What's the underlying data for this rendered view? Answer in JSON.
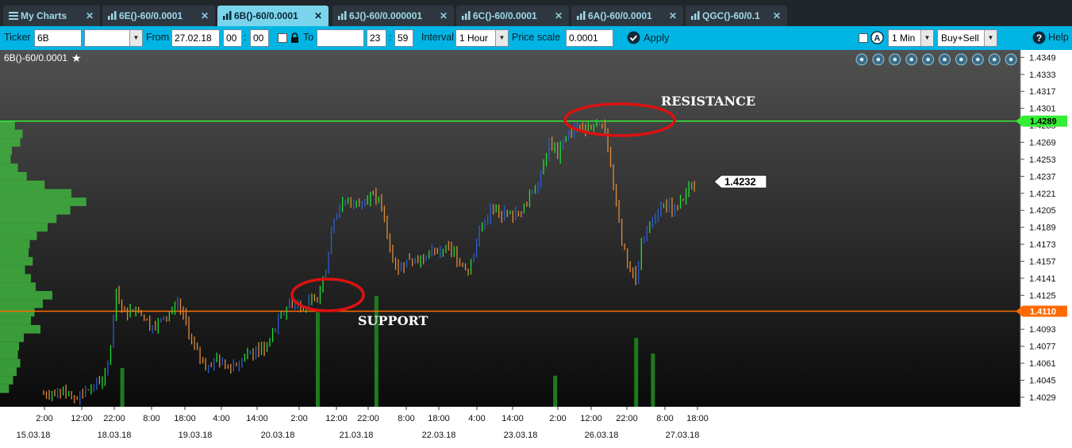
{
  "tabs": [
    {
      "label": "My Charts",
      "icon": "menu-icon",
      "active": false
    },
    {
      "label": "6E()-60/0.0001",
      "icon": "bar-chart-icon",
      "active": false
    },
    {
      "label": "6B()-60/0.0001",
      "icon": "bar-chart-icon",
      "active": true
    },
    {
      "label": "6J()-60/0.000001",
      "icon": "bar-chart-icon",
      "active": false
    },
    {
      "label": "6C()-60/0.0001",
      "icon": "bar-chart-icon",
      "active": false
    },
    {
      "label": "6A()-60/0.0001",
      "icon": "bar-chart-icon",
      "active": false
    },
    {
      "label": "QGC()-60/0.1",
      "icon": "bar-chart-icon",
      "active": false
    }
  ],
  "toolbar": {
    "ticker_label": "Ticker",
    "ticker_value": "6B",
    "from_label": "From",
    "from_date": "27.02.18",
    "from_hour": "00",
    "from_min": "00",
    "to_label": "To",
    "to_date": "",
    "to_hour": "23",
    "to_min": "59",
    "interval_label": "Interval",
    "interval_value": "1 Hour",
    "price_scale_label": "Price scale",
    "price_scale_value": "0.0001",
    "apply_label": "Apply",
    "sub_interval_value": "1 Min",
    "side_value": "Buy+Sell",
    "help_label": "Help",
    "time_sep": ":"
  },
  "chart_header": {
    "symbol": "6B()-60/0.0001"
  },
  "colors": {
    "background_top": "#505050",
    "background_bottom": "#0a0a0a",
    "up": "#22dd33",
    "down": "#e08a3a",
    "resistance": "#33ee33",
    "support": "#ff6a00",
    "circle": "#dd1111",
    "volume": "#1f7a1f"
  },
  "chart_data": {
    "type": "bar",
    "y_ticks": [
      "1.4349",
      "1.4333",
      "1.4317",
      "1.4301",
      "1.4285",
      "1.4269",
      "1.4253",
      "1.4237",
      "1.4221",
      "1.4205",
      "1.4189",
      "1.4173",
      "1.4157",
      "1.4141",
      "1.4125",
      "1.4109",
      "1.4093",
      "1.4077",
      "1.4061",
      "1.4045",
      "1.4029"
    ],
    "ylim": [
      1.402,
      1.4356
    ],
    "time_labels": [
      "2:00",
      "12:00",
      "22:00",
      "8:00",
      "18:00",
      "4:00",
      "14:00",
      "2:00",
      "12:00",
      "22:00",
      "8:00",
      "18:00",
      "4:00",
      "14:00",
      "2:00",
      "12:00",
      "22:00",
      "8:00",
      "18:00"
    ],
    "date_labels": [
      "15.03.18",
      "18.03.18",
      "19.03.18",
      "20.03.18",
      "21.03.18",
      "22.03.18",
      "23.03.18",
      "26.03.18",
      "27.03.18"
    ],
    "resistance": {
      "value": 1.4289,
      "label": "1.4289",
      "annotation": "RESISTANCE"
    },
    "support": {
      "value": 1.411,
      "label": "1.4110",
      "annotation": "SUPPORT"
    },
    "last_price": {
      "value": 1.4232,
      "label": "1.4232"
    },
    "path": [
      {
        "d": 0,
        "p": 1.4032
      },
      {
        "d": 6,
        "p": 1.4036
      },
      {
        "d": 12,
        "p": 1.4028
      },
      {
        "d": 18,
        "p": 1.404
      },
      {
        "d": 22,
        "p": 1.4048
      },
      {
        "d": 24,
        "p": 1.4078
      },
      {
        "d": 26,
        "p": 1.4128
      },
      {
        "d": 29,
        "p": 1.4106
      },
      {
        "d": 33,
        "p": 1.4115
      },
      {
        "d": 38,
        "p": 1.4096
      },
      {
        "d": 43,
        "p": 1.4102
      },
      {
        "d": 48,
        "p": 1.4118
      },
      {
        "d": 51,
        "p": 1.4098
      },
      {
        "d": 54,
        "p": 1.4074
      },
      {
        "d": 58,
        "p": 1.406
      },
      {
        "d": 62,
        "p": 1.4064
      },
      {
        "d": 66,
        "p": 1.4056
      },
      {
        "d": 70,
        "p": 1.4062
      },
      {
        "d": 75,
        "p": 1.407
      },
      {
        "d": 80,
        "p": 1.4078
      },
      {
        "d": 84,
        "p": 1.41
      },
      {
        "d": 88,
        "p": 1.4118
      },
      {
        "d": 93,
        "p": 1.4115
      },
      {
        "d": 98,
        "p": 1.412
      },
      {
        "d": 101,
        "p": 1.4152
      },
      {
        "d": 104,
        "p": 1.42
      },
      {
        "d": 108,
        "p": 1.4214
      },
      {
        "d": 112,
        "p": 1.4212
      },
      {
        "d": 117,
        "p": 1.422
      },
      {
        "d": 121,
        "p": 1.421
      },
      {
        "d": 124,
        "p": 1.417
      },
      {
        "d": 127,
        "p": 1.415
      },
      {
        "d": 131,
        "p": 1.416
      },
      {
        "d": 135,
        "p": 1.4158
      },
      {
        "d": 140,
        "p": 1.4166
      },
      {
        "d": 145,
        "p": 1.417
      },
      {
        "d": 149,
        "p": 1.4158
      },
      {
        "d": 152,
        "p": 1.4148
      },
      {
        "d": 156,
        "p": 1.4185
      },
      {
        "d": 160,
        "p": 1.4205
      },
      {
        "d": 165,
        "p": 1.42
      },
      {
        "d": 170,
        "p": 1.4202
      },
      {
        "d": 174,
        "p": 1.4218
      },
      {
        "d": 178,
        "p": 1.424
      },
      {
        "d": 181,
        "p": 1.427
      },
      {
        "d": 184,
        "p": 1.4258
      },
      {
        "d": 188,
        "p": 1.4278
      },
      {
        "d": 192,
        "p": 1.4283
      },
      {
        "d": 197,
        "p": 1.4284
      },
      {
        "d": 201,
        "p": 1.4282
      },
      {
        "d": 204,
        "p": 1.423
      },
      {
        "d": 207,
        "p": 1.4175
      },
      {
        "d": 210,
        "p": 1.415
      },
      {
        "d": 212,
        "p": 1.414
      },
      {
        "d": 214,
        "p": 1.4172
      },
      {
        "d": 218,
        "p": 1.42
      },
      {
        "d": 222,
        "p": 1.421
      },
      {
        "d": 226,
        "p": 1.4206
      },
      {
        "d": 230,
        "p": 1.422
      },
      {
        "d": 233,
        "p": 1.4232
      }
    ],
    "volume_profile": [
      {
        "p": 1.4285,
        "v": 25
      },
      {
        "p": 1.4277,
        "v": 38
      },
      {
        "p": 1.4269,
        "v": 34
      },
      {
        "p": 1.4261,
        "v": 20
      },
      {
        "p": 1.4253,
        "v": 18
      },
      {
        "p": 1.4245,
        "v": 30
      },
      {
        "p": 1.4237,
        "v": 45
      },
      {
        "p": 1.4229,
        "v": 75
      },
      {
        "p": 1.4221,
        "v": 120
      },
      {
        "p": 1.4213,
        "v": 145
      },
      {
        "p": 1.4205,
        "v": 118
      },
      {
        "p": 1.4197,
        "v": 95
      },
      {
        "p": 1.4189,
        "v": 80
      },
      {
        "p": 1.4181,
        "v": 62
      },
      {
        "p": 1.4173,
        "v": 50
      },
      {
        "p": 1.4165,
        "v": 48
      },
      {
        "p": 1.4157,
        "v": 55
      },
      {
        "p": 1.4149,
        "v": 42
      },
      {
        "p": 1.4141,
        "v": 52
      },
      {
        "p": 1.4133,
        "v": 60
      },
      {
        "p": 1.4125,
        "v": 88
      },
      {
        "p": 1.4117,
        "v": 72
      },
      {
        "p": 1.4109,
        "v": 58
      },
      {
        "p": 1.4101,
        "v": 52
      },
      {
        "p": 1.4093,
        "v": 68
      },
      {
        "p": 1.4085,
        "v": 40
      },
      {
        "p": 1.4077,
        "v": 32
      },
      {
        "p": 1.4069,
        "v": 30
      },
      {
        "p": 1.4061,
        "v": 34
      },
      {
        "p": 1.4053,
        "v": 28
      },
      {
        "p": 1.4045,
        "v": 22
      },
      {
        "p": 1.4037,
        "v": 15
      }
    ],
    "volume_spikes": [
      {
        "d": 28,
        "v": 0.35
      },
      {
        "d": 98,
        "v": 0.85
      },
      {
        "d": 119,
        "v": 1.0
      },
      {
        "d": 183,
        "v": 0.28
      },
      {
        "d": 212,
        "v": 0.62
      },
      {
        "d": 218,
        "v": 0.48
      }
    ]
  }
}
